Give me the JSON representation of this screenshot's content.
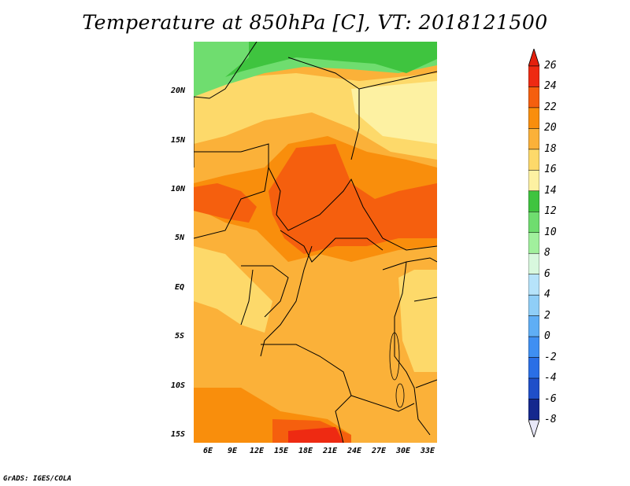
{
  "title": "Temperature at 850hPa [C], VT: 2018121500",
  "credit": "GrADS: IGES/COLA",
  "lat_labels": [
    "20N",
    "15N",
    "10N",
    "5N",
    "EQ",
    "5S",
    "10S",
    "15S"
  ],
  "lon_labels": [
    "6E",
    "9E",
    "12E",
    "15E",
    "18E",
    "21E",
    "24E",
    "27E",
    "30E",
    "33E"
  ],
  "colorbar": {
    "labels": [
      "26",
      "24",
      "22",
      "20",
      "18",
      "16",
      "14",
      "12",
      "10",
      "8",
      "6",
      "4",
      "2",
      "0",
      "-2",
      "-4",
      "-6",
      "-8"
    ],
    "colors": [
      "#ee2a12",
      "#f55f0e",
      "#f98e0c",
      "#fbb139",
      "#fdd96a",
      "#fdf1a2",
      "#3fc43f",
      "#6fdd6f",
      "#a1f09d",
      "#d8f8de",
      "#b6e3fa",
      "#8fcef7",
      "#5faef5",
      "#3f8ff2",
      "#2a6fe6",
      "#1f4fc9",
      "#14288e"
    ],
    "over_color": "#e4200d",
    "under_color": "#e8e8f8"
  },
  "map_colors": {
    "green_dark": "#3fc43f",
    "green_light": "#6fdd6f",
    "pale_yellow": "#fdf1a2",
    "light_orange": "#fdd96a",
    "orange": "#fbb139",
    "dark_orange": "#f98e0c",
    "red_orange": "#f55f0e",
    "red": "#ee2a12"
  }
}
